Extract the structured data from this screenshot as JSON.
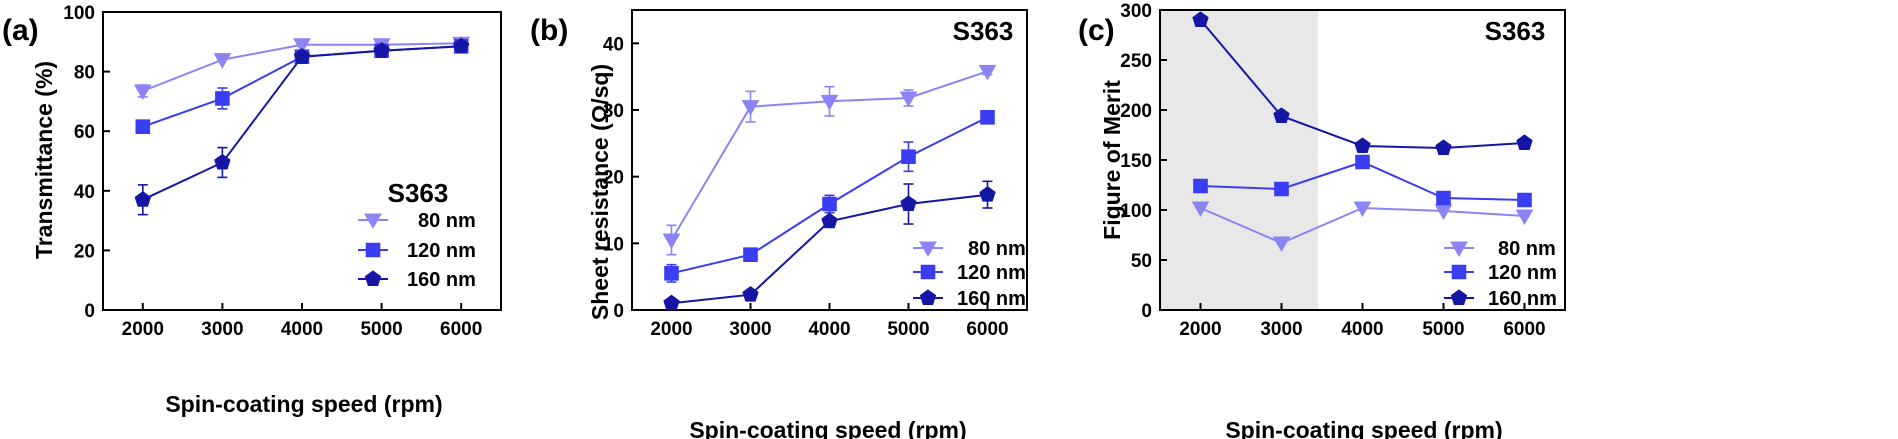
{
  "colors": {
    "80 nm": "#8c84f4",
    "120 nm": "#3a3df2",
    "160 nm": "#1516a6",
    "shade": "#e8e8e8"
  },
  "chart_data": [
    {
      "type": "line",
      "panel_label": "(a)",
      "sample_label": "S363",
      "xlabel": "Spin-coating speed (rpm)",
      "ylabel": "Transmittance (%)",
      "x": [
        2000,
        3000,
        4000,
        5000,
        6000
      ],
      "xlim": [
        1500,
        6500
      ],
      "ylim": [
        0,
        100
      ],
      "yticks": [
        0,
        20,
        40,
        60,
        80,
        100
      ],
      "legend_position": "bottom-right",
      "series": [
        {
          "name": "80 nm",
          "marker": "triangle-down",
          "values": [
            73.5,
            84,
            89,
            89,
            89.5
          ],
          "errors": [
            2,
            0,
            0,
            0,
            0
          ]
        },
        {
          "name": "120 nm",
          "marker": "square",
          "values": [
            61.5,
            71,
            85,
            87,
            88.5
          ],
          "errors": [
            0,
            3.5,
            0,
            0,
            0
          ]
        },
        {
          "name": "160 nm",
          "marker": "pentagon",
          "values": [
            37,
            49.5,
            85,
            87,
            88.5
          ],
          "errors": [
            5,
            5,
            0,
            0,
            0
          ]
        }
      ]
    },
    {
      "type": "line",
      "panel_label": "(b)",
      "sample_label": "S363",
      "xlabel": "Spin-coating speed (rpm)",
      "ylabel": "Sheet resistance (Ω/sq)",
      "x": [
        2000,
        3000,
        4000,
        5000,
        6000
      ],
      "xlim": [
        1500,
        6500
      ],
      "ylim": [
        0,
        45
      ],
      "yticks": [
        0,
        10,
        20,
        30,
        40
      ],
      "legend_position": "bottom-right",
      "series": [
        {
          "name": "80 nm",
          "marker": "triangle-down",
          "values": [
            10.5,
            30.5,
            31.3,
            31.8,
            35.8
          ],
          "errors": [
            2.2,
            2.3,
            2.2,
            1.2,
            0.5
          ]
        },
        {
          "name": "120 nm",
          "marker": "square",
          "values": [
            5.5,
            8.3,
            15.9,
            23,
            28.9
          ],
          "errors": [
            1.3,
            0,
            1.3,
            2.2,
            0.5
          ]
        },
        {
          "name": "160 nm",
          "marker": "pentagon",
          "values": [
            1,
            2.3,
            13.3,
            15.9,
            17.3
          ],
          "errors": [
            0,
            0,
            0.5,
            3,
            2
          ]
        }
      ]
    },
    {
      "type": "line",
      "panel_label": "(c)",
      "sample_label": "S363",
      "xlabel": "Spin-coating speed (rpm)",
      "ylabel": "Figure of Merit",
      "x": [
        2000,
        3000,
        4000,
        5000,
        6000
      ],
      "xlim": [
        1500,
        6500
      ],
      "ylim": [
        0,
        300
      ],
      "yticks": [
        0,
        50,
        100,
        150,
        200,
        250,
        300
      ],
      "shaded_x_range": [
        1500,
        3450
      ],
      "legend_position": "bottom-right",
      "series": [
        {
          "name": "80 nm",
          "marker": "triangle-down",
          "values": [
            102,
            67,
            102,
            99,
            94
          ],
          "errors": [
            0,
            0,
            0,
            0,
            0
          ]
        },
        {
          "name": "120 nm",
          "marker": "square",
          "values": [
            124,
            121,
            148,
            112,
            110
          ],
          "errors": [
            0,
            0,
            0,
            0,
            0
          ]
        },
        {
          "name": "160 nm",
          "marker": "pentagon",
          "values": [
            290,
            194,
            164,
            162,
            167
          ],
          "errors": [
            0,
            0,
            0,
            0,
            0
          ]
        }
      ]
    }
  ]
}
